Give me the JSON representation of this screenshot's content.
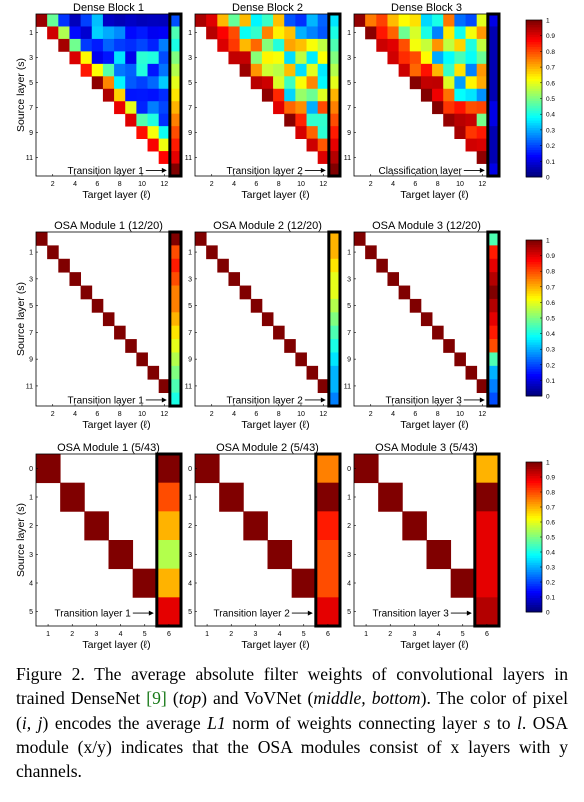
{
  "rows": [
    {
      "panels": [
        {
          "title": "Dense Block 1",
          "annotation": "Transition layer 1"
        },
        {
          "title": "Dense Block 2",
          "annotation": "Transition layer 2"
        },
        {
          "title": "Dense Block 3",
          "annotation": "Classification layer"
        }
      ],
      "ylabel": "Source layer (s)",
      "xlabel": "Target layer (ℓ)",
      "xticks": [
        "2",
        "4",
        "6",
        "8",
        "10",
        "12"
      ],
      "yticks": [
        "1",
        "3",
        "5",
        "7",
        "9",
        "11"
      ]
    },
    {
      "panels": [
        {
          "title": "OSA Module 1 (12/20)",
          "annotation": "Transition layer 1"
        },
        {
          "title": "OSA Module 2 (12/20)",
          "annotation": "Transition layer 2"
        },
        {
          "title": "OSA Module 3 (12/20)",
          "annotation": "Transition layer 3"
        }
      ],
      "ylabel": "Source layer (s)",
      "xlabel": "Target layer (ℓ)",
      "xticks": [
        "2",
        "4",
        "6",
        "8",
        "10",
        "12"
      ],
      "yticks": [
        "1",
        "3",
        "5",
        "7",
        "9",
        "11"
      ]
    },
    {
      "panels": [
        {
          "title": "OSA Module 1 (5/43)",
          "annotation": "Transition layer 1"
        },
        {
          "title": "OSA Module 2 (5/43)",
          "annotation": "Transition layer 2"
        },
        {
          "title": "OSA Module 3 (5/43)",
          "annotation": "Transition layer 3"
        }
      ],
      "ylabel": "Source layer (s)",
      "xlabel": "Target layer (ℓ)",
      "xticks": [
        "1",
        "2",
        "3",
        "4",
        "5",
        "6"
      ],
      "yticks": [
        "0",
        "1",
        "2",
        "3",
        "4",
        "5"
      ]
    }
  ],
  "colorbar_ticks": [
    "0",
    "0.1",
    "0.2",
    "0.3",
    "0.4",
    "0.5",
    "0.6",
    "0.7",
    "0.8",
    "0.9",
    "1"
  ],
  "chart_data": [
    {
      "type": "heatmap",
      "title": "Dense Block 1",
      "x_range": [
        1,
        13
      ],
      "y_range": [
        0,
        12
      ],
      "last_column": [
        0.2,
        0.45,
        0.4,
        0.5,
        0.55,
        0.6,
        0.65,
        0.7,
        0.75,
        0.8,
        0.85,
        0.9,
        1.0
      ]
    },
    {
      "type": "heatmap",
      "title": "Dense Block 2",
      "x_range": [
        1,
        13
      ],
      "y_range": [
        0,
        12
      ],
      "last_column": [
        0.35,
        0.4,
        0.45,
        0.5,
        0.55,
        0.6,
        0.7,
        0.75,
        0.8,
        0.85,
        0.9,
        0.95,
        1.0
      ]
    },
    {
      "type": "heatmap",
      "title": "Dense Block 3",
      "x_range": [
        1,
        13
      ],
      "y_range": [
        0,
        12
      ],
      "last_column": [
        0.1,
        0.05,
        0.05,
        0.05,
        0.05,
        0.05,
        0.05,
        0.1,
        0.1,
        0.05,
        0.05,
        0.05,
        0.1
      ]
    },
    {
      "type": "heatmap",
      "title": "OSA Module 1 (12/20)",
      "diagonal": 1.0,
      "last_column": [
        1.0,
        0.8,
        0.85,
        0.8,
        0.75,
        0.75,
        0.7,
        0.65,
        0.6,
        0.55,
        0.5,
        0.45,
        0.4
      ]
    },
    {
      "type": "heatmap",
      "title": "OSA Module 2 (12/20)",
      "diagonal": 1.0,
      "last_column": [
        0.7,
        0.7,
        0.65,
        0.6,
        0.6,
        0.55,
        0.5,
        0.45,
        0.4,
        0.35,
        0.3,
        0.3,
        0.25
      ]
    },
    {
      "type": "heatmap",
      "title": "OSA Module 3 (12/20)",
      "diagonal": 1.0,
      "last_column": [
        0.45,
        0.85,
        0.9,
        0.95,
        1.0,
        0.95,
        0.9,
        0.85,
        0.8,
        0.45,
        0.3,
        0.25,
        0.2
      ]
    },
    {
      "type": "heatmap",
      "title": "OSA Module 1 (5/43)",
      "diagonal": 1.0,
      "last_column": [
        1.0,
        0.8,
        0.7,
        0.55,
        0.7,
        0.9
      ]
    },
    {
      "type": "heatmap",
      "title": "OSA Module 2 (5/43)",
      "diagonal": 1.0,
      "last_column": [
        0.75,
        1.0,
        0.85,
        0.8,
        0.8,
        0.9
      ]
    },
    {
      "type": "heatmap",
      "title": "OSA Module 3 (5/43)",
      "diagonal": 1.0,
      "last_column": [
        0.7,
        1.0,
        0.9,
        0.9,
        0.9,
        0.95
      ]
    }
  ],
  "caption": {
    "lead": "Figure 2. The average absolute filter weights of convolutional layers in trained DenseNet ",
    "ref": "[9]",
    "p1": " (",
    "top": "top",
    "p2": ") and VoVNet (",
    "middle_bottom": "middle, bottom",
    "p3": "). The color of pixel (",
    "ij": "i, j",
    "p4": ") encodes the average ",
    "l1": "L1",
    "p5": " norm of weights connecting layer ",
    "s": "s",
    "p6": " to ",
    "l": "l",
    "p7": ". OSA module (x/y) indicates that the OSA modules consist of x layers with y channels."
  }
}
